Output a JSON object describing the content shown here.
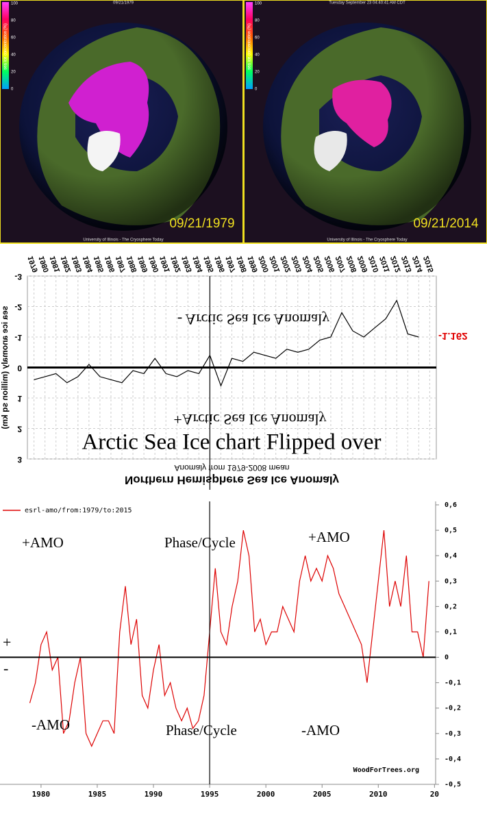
{
  "panels": [
    {
      "header": "09/21/1979",
      "date": "09/21/1979",
      "footer": "University of Illinois - The Cryosphere Today",
      "colorbar_label": "sea ice concentration (%)",
      "colorbar_ticks": [
        0,
        20,
        40,
        60,
        80,
        100
      ]
    },
    {
      "header": "Tuesday September 23 04:40:41 AM CDT",
      "date": "09/21/2014",
      "footer": "University of Illinois - The Cryosphere Today",
      "colorbar_label": "sea ice concentration (%)",
      "colorbar_ticks": [
        0,
        20,
        40,
        60,
        80,
        100
      ]
    }
  ],
  "chart_data": [
    {
      "type": "line",
      "flipped": true,
      "title": "Northern Hemisphere Sea Ice Anomaly",
      "xlabel": "Anomaly from 1979-2008 mean",
      "ylabel": "sea ice anomaly (million sq km)",
      "overlay_title": "Arctic Sea Ice chart Flipped over",
      "annotations": [
        "- Arctic Sea Ice Anomaly",
        "+Arctic Sea Ice Anomaly"
      ],
      "current_label": "-1.162",
      "current_color": "#e00000",
      "vline": 1995,
      "grid": true,
      "x": [
        1979,
        1980,
        1981,
        1982,
        1983,
        1984,
        1985,
        1986,
        1987,
        1988,
        1989,
        1990,
        1991,
        1992,
        1993,
        1994,
        1995,
        1996,
        1997,
        1998,
        1999,
        2000,
        2001,
        2002,
        2003,
        2004,
        2005,
        2006,
        2007,
        2008,
        2009,
        2010,
        2011,
        2012,
        2013,
        2014
      ],
      "series": [
        {
          "name": "Northern Hemisphere Sea Ice Anomaly",
          "color": "#000000",
          "values": [
            0.4,
            0.3,
            0.2,
            0.5,
            0.3,
            -0.1,
            0.3,
            0.4,
            0.5,
            0.1,
            0.2,
            -0.3,
            0.2,
            0.3,
            0.1,
            0.2,
            -0.4,
            0.6,
            -0.3,
            -0.2,
            -0.5,
            -0.4,
            -0.3,
            -0.6,
            -0.5,
            -0.6,
            -0.9,
            -1.0,
            -1.8,
            -1.2,
            -1.0,
            -1.3,
            -1.6,
            -2.2,
            -1.1,
            -1.0
          ]
        }
      ],
      "xlim": [
        1978.4,
        2015.6
      ],
      "xticks": [
        1979,
        1980,
        1981,
        1982,
        1983,
        1984,
        1985,
        1986,
        1987,
        1988,
        1989,
        1990,
        1991,
        1992,
        1993,
        1994,
        1995,
        1996,
        1997,
        1998,
        1999,
        2000,
        2001,
        2002,
        2003,
        2004,
        2005,
        2006,
        2007,
        2008,
        2009,
        2010,
        2011,
        2012,
        2013,
        2014,
        2015
      ],
      "ylim": [
        -3,
        3
      ],
      "yticks": [
        -3,
        -2,
        -1,
        0,
        1,
        2,
        3
      ]
    },
    {
      "type": "line",
      "legend": "esrl-amo/from:1979/to:2015",
      "credit": "WoodForTrees.org",
      "annotations": [
        "+AMO",
        "Phase/Cycle",
        "+AMO",
        "-AMO",
        "Phase/Cycle",
        "-AMO",
        "+",
        "-"
      ],
      "vline": 1995,
      "x": [
        1979,
        1979.5,
        1980,
        1980.5,
        1981,
        1981.5,
        1982,
        1982.5,
        1983,
        1983.5,
        1984,
        1984.5,
        1985,
        1985.5,
        1986,
        1986.5,
        1987,
        1987.5,
        1988,
        1988.5,
        1989,
        1989.5,
        1990,
        1990.5,
        1991,
        1991.5,
        1992,
        1992.5,
        1993,
        1993.5,
        1994,
        1994.5,
        1995,
        1995.5,
        1996,
        1996.5,
        1997,
        1997.5,
        1998,
        1998.5,
        1999,
        1999.5,
        2000,
        2000.5,
        2001,
        2001.5,
        2002,
        2002.5,
        2003,
        2003.5,
        2004,
        2004.5,
        2005,
        2005.5,
        2006,
        2006.5,
        2007,
        2007.5,
        2008,
        2008.5,
        2009,
        2009.5,
        2010,
        2010.5,
        2011,
        2011.5,
        2012,
        2012.5,
        2013,
        2013.5,
        2014,
        2014.5
      ],
      "series": [
        {
          "name": "esrl-amo/from:1979/to:2015",
          "color": "#dd0000",
          "values": [
            -0.18,
            -0.1,
            0.05,
            0.1,
            -0.05,
            0.0,
            -0.3,
            -0.25,
            -0.1,
            0.0,
            -0.3,
            -0.35,
            -0.3,
            -0.25,
            -0.25,
            -0.3,
            0.1,
            0.28,
            0.05,
            0.15,
            -0.15,
            -0.2,
            -0.05,
            0.05,
            -0.15,
            -0.1,
            -0.2,
            -0.25,
            -0.2,
            -0.28,
            -0.25,
            -0.15,
            0.1,
            0.35,
            0.1,
            0.05,
            0.2,
            0.3,
            0.5,
            0.4,
            0.1,
            0.15,
            0.05,
            0.1,
            0.1,
            0.2,
            0.15,
            0.1,
            0.3,
            0.4,
            0.3,
            0.35,
            0.3,
            0.4,
            0.35,
            0.25,
            0.2,
            0.15,
            0.1,
            0.05,
            -0.1,
            0.1,
            0.3,
            0.5,
            0.2,
            0.3,
            0.2,
            0.4,
            0.1,
            0.1,
            0.0,
            0.3
          ]
        }
      ],
      "xlim": [
        1976.35,
        2015.1
      ],
      "xticks": [
        1980,
        1985,
        1990,
        1995,
        2000,
        2005,
        2010,
        {
          "value": 2015,
          "label": "20"
        }
      ],
      "ylim": [
        -0.5,
        0.6
      ],
      "yticks": [
        {
          "value": 0.6,
          "label": "0,6"
        },
        {
          "value": 0.5,
          "label": "0,5"
        },
        {
          "value": 0.4,
          "label": "0,4"
        },
        {
          "value": 0.3,
          "label": "0,3"
        },
        {
          "value": 0.2,
          "label": "0,2"
        },
        {
          "value": 0.1,
          "label": "0,1"
        },
        0,
        {
          "value": -0.1,
          "label": "-0,1"
        },
        {
          "value": -0.2,
          "label": "-0,2"
        },
        {
          "value": -0.3,
          "label": "-0,3"
        },
        {
          "value": -0.4,
          "label": "-0,4"
        },
        {
          "value": -0.5,
          "label": "-0,5"
        }
      ]
    }
  ]
}
